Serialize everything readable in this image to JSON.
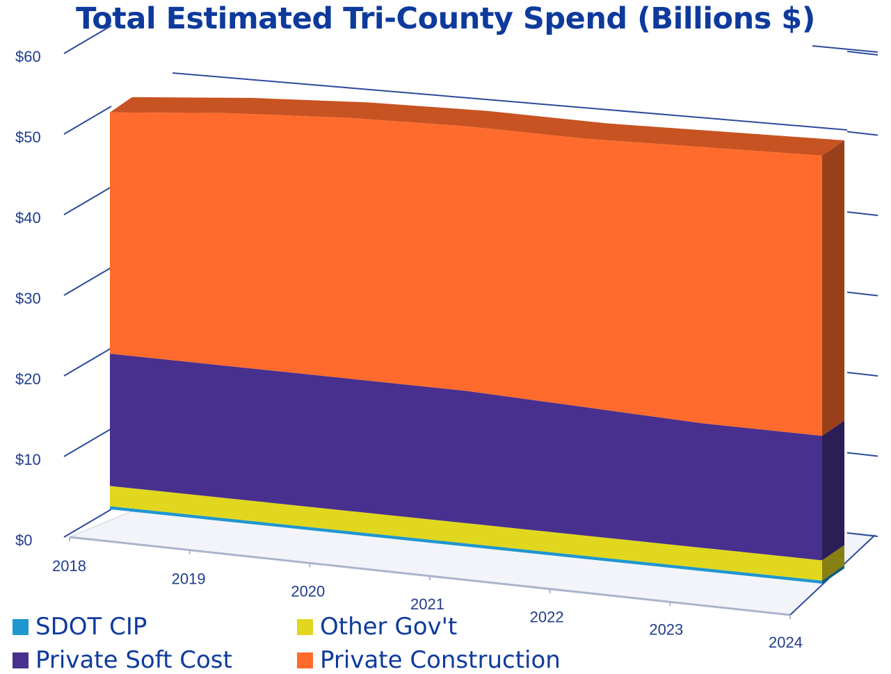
{
  "chart_data": {
    "type": "area",
    "title": "Total Estimated Tri-County Spend (Billions $)",
    "x": [
      "2018",
      "2019",
      "2020",
      "2021",
      "2022",
      "2023",
      "2024"
    ],
    "y_ticks": [
      "$0",
      "$10",
      "$20",
      "$30",
      "$40",
      "$50",
      "$60"
    ],
    "ylim": [
      0,
      60
    ],
    "stacked": true,
    "three_d": true,
    "grid": true,
    "legend_position": "bottom-left",
    "series": [
      {
        "name": "SDOT CIP",
        "color": "#1f96cf",
        "values": [
          0.4,
          0.4,
          0.4,
          0.4,
          0.4,
          0.4,
          0.4
        ]
      },
      {
        "name": "Other Gov't",
        "color": "#e0d71e",
        "values": [
          2.6,
          2.6,
          2.6,
          2.6,
          2.6,
          2.6,
          2.6
        ]
      },
      {
        "name": "Private Soft Cost",
        "color": "#48308f",
        "values": [
          17.0,
          17.0,
          17.0,
          17.0,
          16.5,
          16.0,
          16.0
        ]
      },
      {
        "name": "Private Construction",
        "color": "#ff6b2c",
        "values": [
          31.0,
          32.5,
          33.5,
          34.0,
          34.5,
          35.5,
          36.0
        ]
      }
    ]
  }
}
